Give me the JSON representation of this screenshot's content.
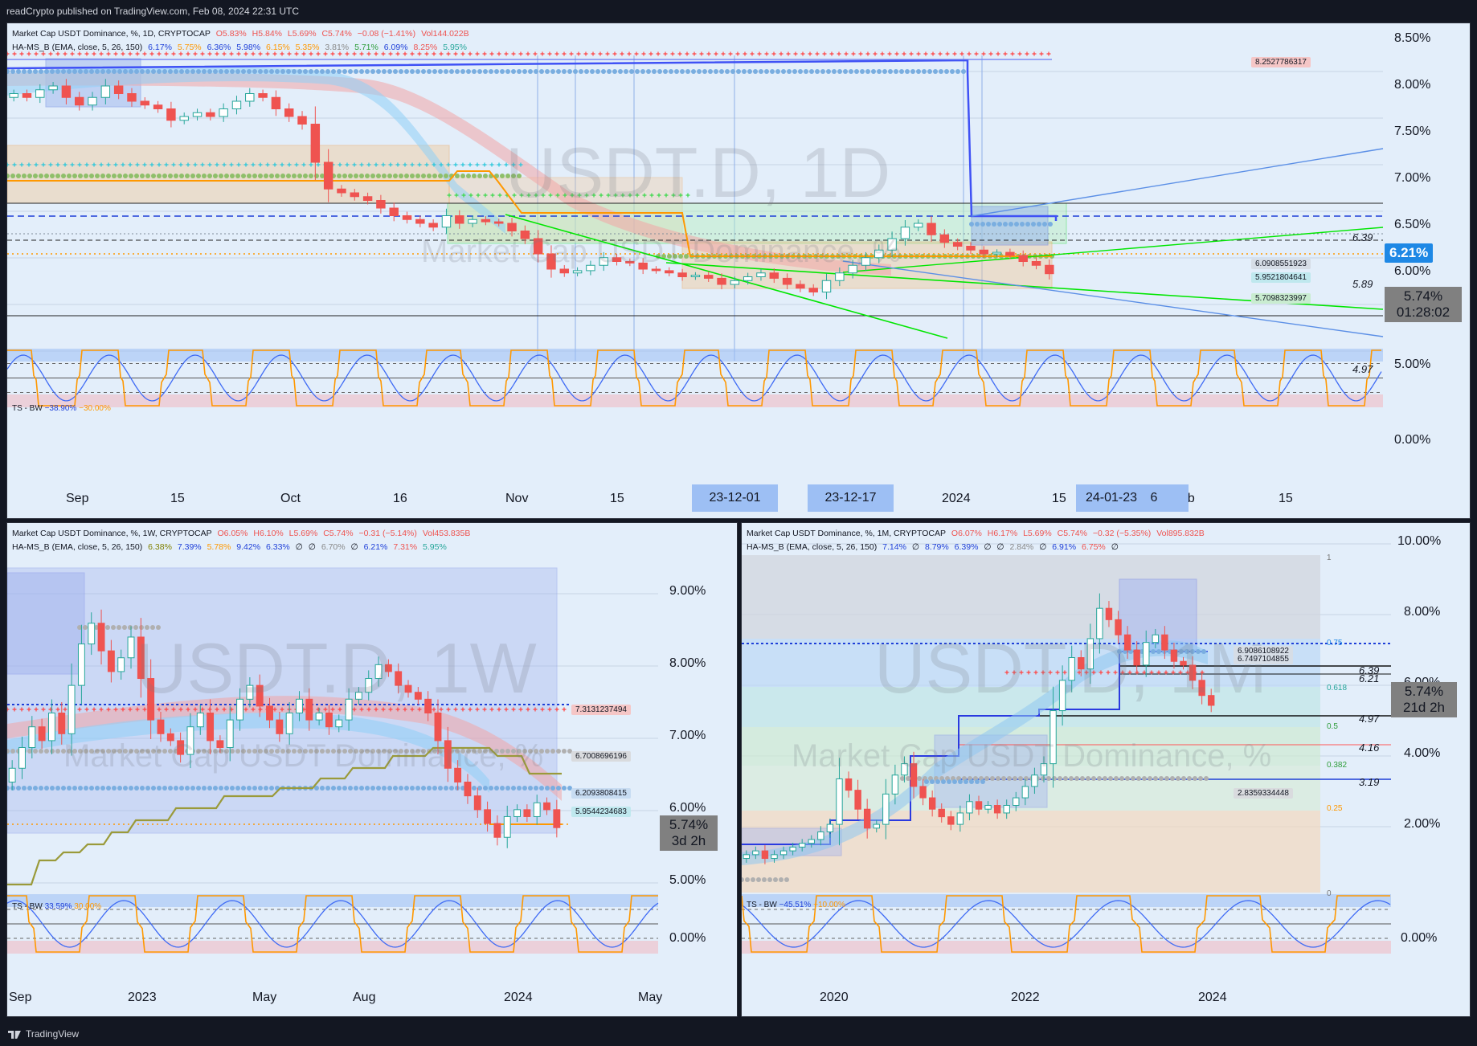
{
  "header": {
    "publish_text": "readCrypto published on TradingView.com, Feb 08, 2024 22:31 UTC"
  },
  "footer": {
    "brand": "TradingView"
  },
  "colors": {
    "background": "#131722",
    "panel_bg": "#e3eefa",
    "up": "#26a69a",
    "down": "#ef5350",
    "blue_line": "#3f51f5",
    "orange": "#ff9800",
    "green_line": "#00e600",
    "price_tag": "#1e88e5"
  },
  "daily": {
    "legend1": {
      "title": "Market Cap USDT Dominance, %, 1D, CRYPTOCAP",
      "o": "O5.83%",
      "h": "H5.84%",
      "l": "L5.69%",
      "c": "C5.74%",
      "chg": "−0.08 (−1.41%)",
      "vol": "Vol144.022B"
    },
    "legend2": {
      "name": "HA-MS_B (EMA, close, 5, 26, 150)",
      "values": [
        "6.17%",
        "5.75%",
        "6.36%",
        "5.98%",
        "6.15%",
        "5.35%",
        "3.81%",
        "5.71%",
        "6.09%",
        "8.25%",
        "5.95%"
      ]
    },
    "watermark_big": "USDT.D, 1D",
    "watermark_small": "Market Cap USDT Dominance, %",
    "price_axis": [
      "8.50%",
      "8.00%",
      "7.50%",
      "7.00%",
      "6.50%",
      "6.00%",
      "5.50%",
      "5.00%"
    ],
    "current_price": "6.21%",
    "last_price": "5.74%",
    "countdown": "01:28:02",
    "levels": {
      "l639": "6.39",
      "l589": "5.89",
      "l497": "4.97"
    },
    "tags": {
      "t1": "8.2527786317",
      "t2": "6.0908551923",
      "t3": "5.9521804641",
      "t4": "5.7098323997"
    },
    "time_axis": [
      "Sep",
      "15",
      "Oct",
      "16",
      "Nov",
      "15",
      "2024",
      "15",
      "6",
      "eb",
      "15"
    ],
    "date_highlights": [
      "23-12-01",
      "23-12-17",
      "24-01-23"
    ],
    "osc": {
      "label": "TS - BW",
      "v1": "−38.90%",
      "v2": "−30.00%",
      "zero": "0.00%"
    }
  },
  "weekly": {
    "legend1": {
      "title": "Market Cap USDT Dominance, %, 1W, CRYPTOCAP",
      "o": "O6.05%",
      "h": "H6.10%",
      "l": "L5.69%",
      "c": "C5.74%",
      "chg": "−0.31 (−5.14%)",
      "vol": "Vol453.835B"
    },
    "legend2": {
      "name": "HA-MS_B (EMA, close, 5, 26, 150)",
      "values": [
        "6.38%",
        "7.39%",
        "5.78%",
        "9.42%",
        "6.33%",
        "∅",
        "∅",
        "6.70%",
        "∅",
        "6.21%",
        "7.31%",
        "5.95%"
      ]
    },
    "watermark_big": "USDT.D, 1W",
    "watermark_small": "Market Cap USDT Dominance, %",
    "price_axis": [
      "9.00%",
      "8.00%",
      "7.00%",
      "6.00%",
      "5.00%"
    ],
    "tags": {
      "t1": "7.3131237494",
      "t2": "6.7008696196",
      "t3": "6.2093808415",
      "t4": "5.9544234683"
    },
    "last_price": "5.74%",
    "countdown": "3d 2h",
    "time_axis": [
      "Sep",
      "2023",
      "May",
      "Aug",
      "2024",
      "May"
    ],
    "osc": {
      "label": "TS - BW",
      "v1": "33.59%",
      "v2": "30.00%",
      "zero": "0.00%"
    }
  },
  "monthly": {
    "legend1": {
      "title": "Market Cap USDT Dominance, %, 1M, CRYPTOCAP",
      "o": "O6.07%",
      "h": "H6.17%",
      "l": "L5.69%",
      "c": "C5.74%",
      "chg": "−0.32 (−5.35%)",
      "vol": "Vol895.832B"
    },
    "legend2": {
      "name": "HA-MS_B (EMA, close, 5, 26, 150)",
      "values": [
        "7.14%",
        "∅",
        "8.79%",
        "6.39%",
        "∅",
        "∅",
        "2.84%",
        "∅",
        "6.91%",
        "6.75%",
        "∅"
      ]
    },
    "watermark_big": "USDT.D, 1M",
    "watermark_small": "Market Cap USDT Dominance, %",
    "price_axis": [
      "10.00%",
      "8.00%",
      "6.00%",
      "4.00%",
      "2.00%"
    ],
    "fib": {
      "f1": "1",
      "f075": "0.75",
      "f0618": "0.618",
      "f05": "0.5",
      "f0382": "0.382",
      "f025": "0.25",
      "f0": "0"
    },
    "levels": {
      "l639": "6.39",
      "l621": "6.21",
      "l497": "4.97",
      "l416": "4.16",
      "l319": "3.19"
    },
    "tags": {
      "t1": "6.9086108922",
      "t2": "6.7497104855",
      "t3": "2.8359334448"
    },
    "last_price": "5.74%",
    "countdown": "21d 2h",
    "time_axis": [
      "2020",
      "2022",
      "2024"
    ],
    "osc": {
      "label": "TS - BW",
      "v1": "−45.51%",
      "v2": "−10.00%",
      "zero": "0.00%"
    }
  },
  "chart_data": [
    {
      "type": "candlestick",
      "title": "USDT.D, 1D",
      "ylim": [
        4.6,
        8.6
      ],
      "series": [
        {
          "name": "daily",
          "values": [
            8.1,
            8.05,
            8.15,
            8.2,
            8.05,
            7.95,
            8.05,
            8.2,
            8.1,
            8.0,
            7.95,
            7.9,
            7.75,
            7.8,
            7.85,
            7.8,
            7.9,
            8.0,
            8.1,
            8.05,
            7.9,
            7.8,
            7.7,
            7.2,
            6.85,
            6.8,
            6.75,
            6.7,
            6.6,
            6.5,
            6.45,
            6.4,
            6.35,
            6.5,
            6.4,
            6.45,
            6.42,
            6.4,
            6.3,
            6.2,
            6.0,
            5.8,
            5.75,
            5.78,
            5.85,
            5.95,
            5.9,
            5.88,
            5.8,
            5.78,
            5.75,
            5.7,
            5.72,
            5.68,
            5.6,
            5.65,
            5.7,
            5.75,
            5.68,
            5.6,
            5.55,
            5.5,
            5.65,
            5.75,
            5.85,
            5.95,
            6.05,
            6.2,
            6.35,
            6.4,
            6.25,
            6.15,
            6.1,
            6.05,
            6.0,
            6.02,
            5.98,
            5.9,
            5.85,
            5.74
          ]
        }
      ]
    },
    {
      "type": "candlestick",
      "title": "USDT.D, 1W",
      "ylim": [
        4.8,
        9.5
      ],
      "series": [
        {
          "name": "weekly",
          "values": [
            6.6,
            6.9,
            7.2,
            7.0,
            7.4,
            7.1,
            7.8,
            8.4,
            8.7,
            8.3,
            8.0,
            8.2,
            8.5,
            7.9,
            7.3,
            7.1,
            7.0,
            6.8,
            7.2,
            7.4,
            7.0,
            6.9,
            7.3,
            7.6,
            7.8,
            7.5,
            7.3,
            7.1,
            7.4,
            7.6,
            7.3,
            7.4,
            7.2,
            7.3,
            7.6,
            7.7,
            7.9,
            8.1,
            8.0,
            7.8,
            7.7,
            7.6,
            7.4,
            7.0,
            6.6,
            6.4,
            6.2,
            6.0,
            5.8,
            5.6,
            5.9,
            6.0,
            5.9,
            6.1,
            6.0,
            5.74
          ]
        }
      ]
    },
    {
      "type": "candlestick",
      "title": "USDT.D, 1M",
      "ylim": [
        0.8,
        10.0
      ],
      "series": [
        {
          "name": "monthly",
          "values": [
            1.8,
            1.9,
            1.7,
            1.8,
            1.9,
            2.0,
            2.1,
            2.2,
            2.4,
            2.6,
            3.8,
            3.5,
            3.0,
            2.5,
            2.6,
            3.4,
            3.9,
            4.2,
            3.6,
            3.3,
            3.0,
            2.8,
            2.6,
            2.9,
            3.2,
            3.0,
            3.1,
            2.9,
            3.1,
            3.3,
            3.6,
            3.9,
            4.2,
            5.6,
            6.4,
            7.0,
            6.7,
            7.5,
            8.3,
            8.0,
            7.6,
            7.2,
            6.8,
            7.4,
            7.6,
            7.2,
            6.9,
            6.8,
            6.4,
            6.0,
            5.74
          ]
        }
      ]
    }
  ]
}
